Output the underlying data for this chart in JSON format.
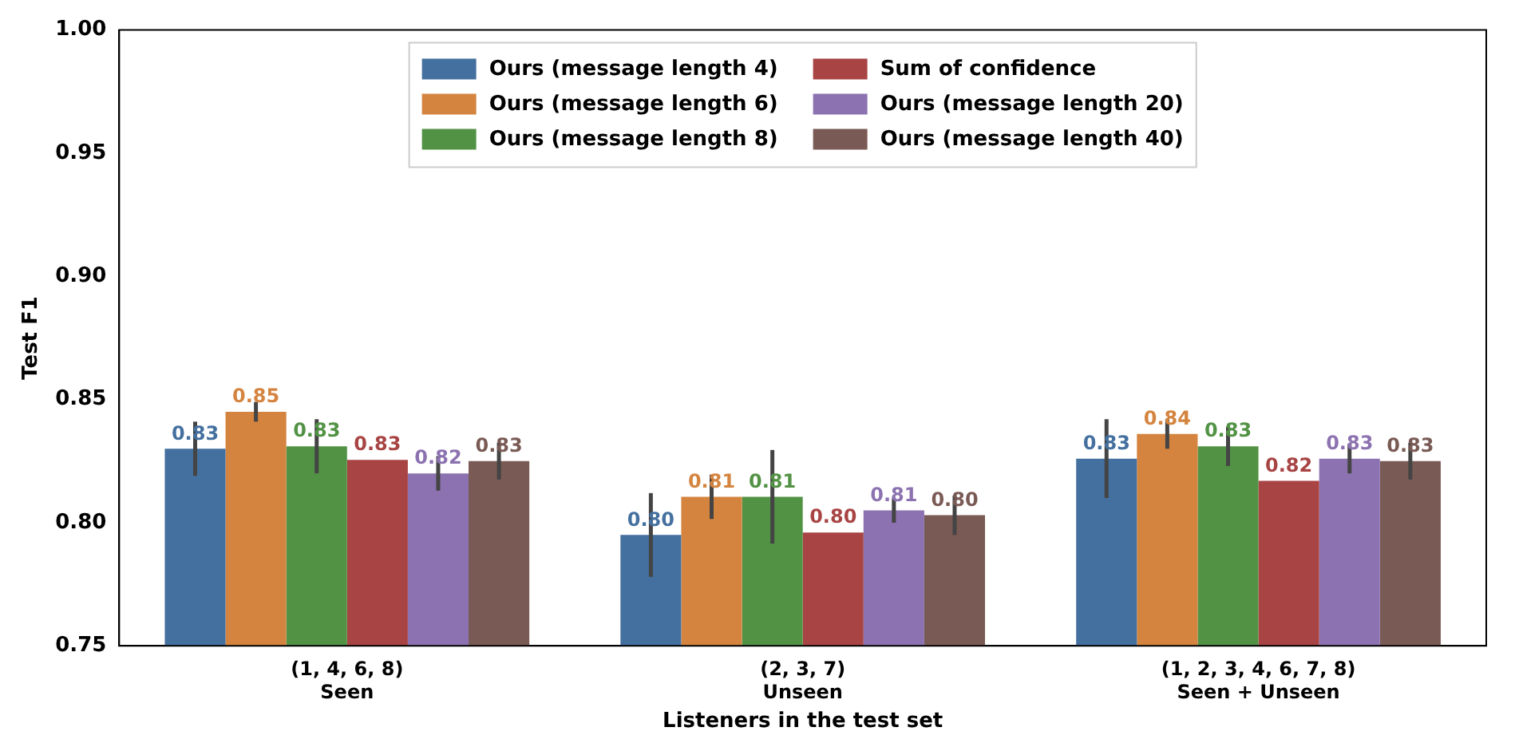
{
  "chart_data": {
    "type": "bar",
    "xlabel": "Listeners in the test set",
    "ylabel": "Test F1",
    "categories": [
      "(1, 4, 6, 8)\nSeen",
      "(2, 3, 7)\nUnseen",
      "(1, 2, 3, 4, 6, 7, 8)\nSeen + Unseen"
    ],
    "series": [
      {
        "name": "Ours (message length 4)",
        "color": "#44709f",
        "values": [
          0.83,
          0.795,
          0.826
        ],
        "errors": [
          0.011,
          0.017,
          0.016
        ],
        "value_labels": [
          "0.83",
          "0.80",
          "0.83"
        ]
      },
      {
        "name": "Ours (message length 6)",
        "color": "#d4843e",
        "values": [
          0.845,
          0.8105,
          0.836
        ],
        "errors": [
          0.004,
          0.009,
          0.006
        ],
        "value_labels": [
          "0.85",
          "0.81",
          "0.84"
        ]
      },
      {
        "name": "Ours (message length 8)",
        "color": "#529244",
        "values": [
          0.831,
          0.8105,
          0.831
        ],
        "errors": [
          0.011,
          0.019,
          0.008
        ],
        "value_labels": [
          "0.83",
          "0.81",
          "0.83"
        ]
      },
      {
        "name": "Sum of confidence",
        "color": "#a84444",
        "values": [
          0.8255,
          0.796,
          0.817
        ],
        "value_labels": [
          "0.83",
          "0.80",
          "0.82"
        ]
      },
      {
        "name": "Ours (message length 20)",
        "color": "#8c72b0",
        "values": [
          0.82,
          0.805,
          0.826
        ],
        "errors": [
          0.007,
          0.005,
          0.006
        ],
        "value_labels": [
          "0.82",
          "0.81",
          "0.83"
        ]
      },
      {
        "name": "Ours (message length 40)",
        "color": "#7a5a54",
        "values": [
          0.825,
          0.803,
          0.825
        ],
        "errors": [
          0.0075,
          0.008,
          0.0075
        ],
        "value_labels": [
          "0.83",
          "0.80",
          "0.83"
        ]
      }
    ],
    "ylim": [
      0.75,
      1.0
    ],
    "yticks": [
      {
        "value": 0.75,
        "label": "0.75"
      },
      {
        "value": 0.8,
        "label": "0.80"
      },
      {
        "value": 0.85,
        "label": "0.85"
      },
      {
        "value": 0.9,
        "label": "0.90"
      },
      {
        "value": 0.95,
        "label": "0.95"
      },
      {
        "value": 1.0,
        "label": "1.00"
      }
    ],
    "grid": false,
    "legend": "top"
  }
}
